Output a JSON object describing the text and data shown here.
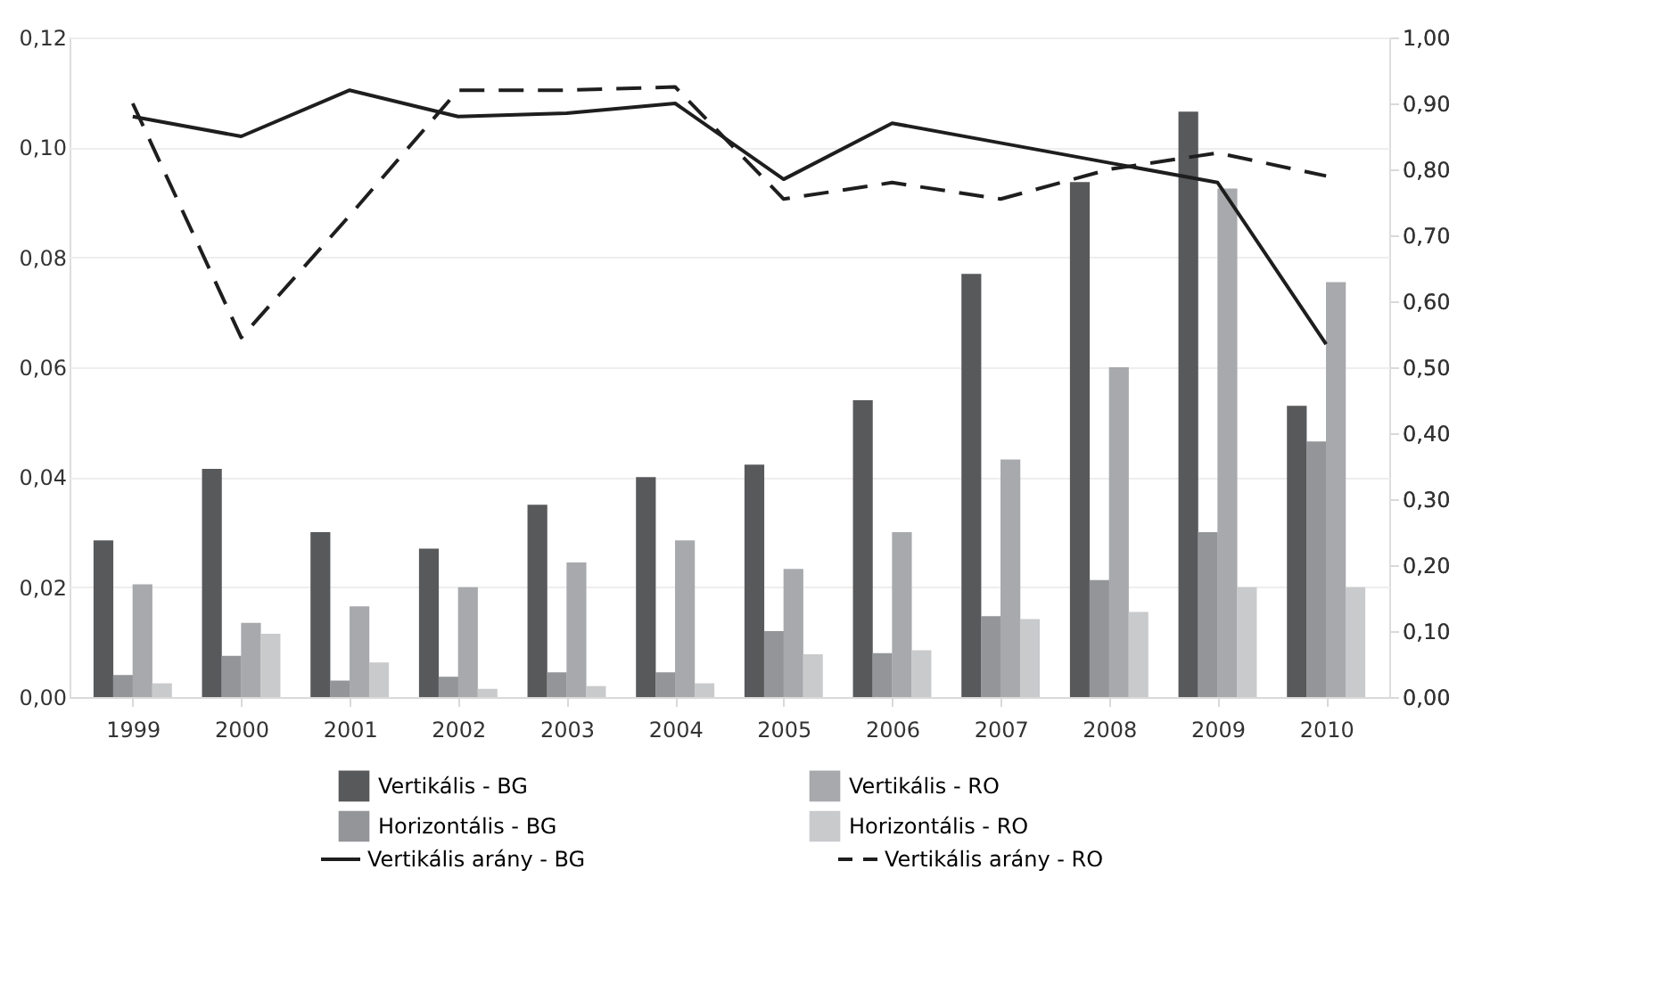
{
  "chart_data": {
    "type": "bar",
    "categories": [
      "1999",
      "2000",
      "2001",
      "2002",
      "2003",
      "2004",
      "2005",
      "2006",
      "2007",
      "2008",
      "2009",
      "2010"
    ],
    "series": [
      {
        "name": "Vertikális - BG",
        "color": "#58595b",
        "values": [
          0.0285,
          0.0415,
          0.03,
          0.027,
          0.035,
          0.04,
          0.0423,
          0.054,
          0.077,
          0.0937,
          0.1065,
          0.053
        ]
      },
      {
        "name": "Horizontális - BG",
        "color": "#939598",
        "values": [
          0.004,
          0.0075,
          0.003,
          0.0037,
          0.0045,
          0.0045,
          0.012,
          0.008,
          0.0147,
          0.0213,
          0.03,
          0.0465
        ]
      },
      {
        "name": "Vertikális - RO",
        "color": "#a7a9ac",
        "values": [
          0.0205,
          0.0135,
          0.0165,
          0.02,
          0.0245,
          0.0285,
          0.0233,
          0.03,
          0.0432,
          0.06,
          0.0925,
          0.0755
        ]
      },
      {
        "name": "Horizontális - RO",
        "color": "#c9cacc",
        "values": [
          0.0025,
          0.0115,
          0.0063,
          0.0015,
          0.002,
          0.0025,
          0.0078,
          0.0085,
          0.0142,
          0.0155,
          0.02,
          0.02
        ]
      },
      {
        "name": "Vertikális arány - BG",
        "type": "line",
        "axis": "y2",
        "color": "#1e1e1e",
        "line_style": "solid",
        "values": [
          0.88,
          0.85,
          0.92,
          0.88,
          0.885,
          0.9,
          0.785,
          0.87,
          0.84,
          0.81,
          0.78,
          0.535
        ]
      },
      {
        "name": "Vertikális arány - RO",
        "type": "line",
        "axis": "y2",
        "color": "#1e1e1e",
        "line_style": "dashed",
        "values": [
          0.9,
          0.545,
          0.73,
          0.92,
          0.92,
          0.925,
          0.755,
          0.78,
          0.755,
          0.8,
          0.825,
          0.79
        ]
      }
    ],
    "ylim": [
      0,
      0.12
    ],
    "yticks": [
      {
        "value": 0,
        "label": "0,00"
      },
      {
        "value": 0.02,
        "label": "0,02"
      },
      {
        "value": 0.04,
        "label": "0,04"
      },
      {
        "value": 0.06,
        "label": "0,06"
      },
      {
        "value": 0.08,
        "label": "0,08"
      },
      {
        "value": 0.1,
        "label": "0,10"
      },
      {
        "value": 0.12,
        "label": "0,12"
      }
    ],
    "y2lim": [
      0,
      1
    ],
    "y2ticks": [
      {
        "value": 0,
        "label": "0,00"
      },
      {
        "value": 0.1,
        "label": "0,10"
      },
      {
        "value": 0.2,
        "label": "0,20"
      },
      {
        "value": 0.3,
        "label": "0,30"
      },
      {
        "value": 0.4,
        "label": "0,40"
      },
      {
        "value": 0.5,
        "label": "0,50"
      },
      {
        "value": 0.6,
        "label": "0,60"
      },
      {
        "value": 0.7,
        "label": "0,70"
      },
      {
        "value": 0.8,
        "label": "0,80"
      },
      {
        "value": 0.9,
        "label": "0,90"
      },
      {
        "value": 1,
        "label": "1,00"
      }
    ],
    "grid": "y",
    "legend": "bottom"
  }
}
